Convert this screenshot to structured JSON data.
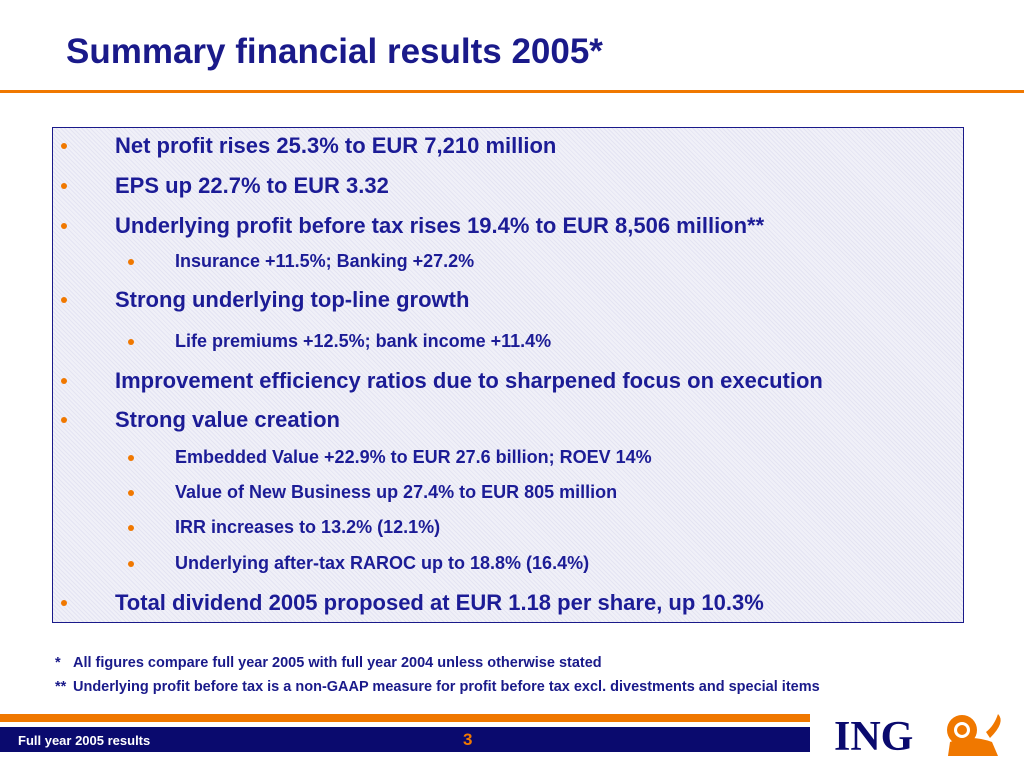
{
  "header": {
    "title": "Summary financial results 2005*"
  },
  "bullets": [
    {
      "level": 1,
      "text": "Net profit rises 25.3% to EUR 7,210 million"
    },
    {
      "level": 1,
      "text": "EPS up 22.7% to EUR 3.32"
    },
    {
      "level": 1,
      "text": "Underlying profit before tax rises 19.4% to EUR 8,506 million**"
    },
    {
      "level": 2,
      "text": "Insurance +11.5%;  Banking +27.2%"
    },
    {
      "level": 1,
      "text": "Strong underlying top-line growth"
    },
    {
      "level": 2,
      "text": "Life premiums +12.5%; bank income +11.4%"
    },
    {
      "level": 1,
      "text": "Improvement efficiency ratios due to sharpened focus on execution"
    },
    {
      "level": 1,
      "text": "Strong value creation"
    },
    {
      "level": 2,
      "text": "Embedded Value +22.9% to EUR 27.6 billion; ROEV 14%"
    },
    {
      "level": 2,
      "text": "Value of New Business up 27.4% to EUR 805 million"
    },
    {
      "level": 2,
      "text": "IRR increases to 13.2% (12.1%)"
    },
    {
      "level": 2,
      "text": "Underlying after-tax RAROC up to 18.8% (16.4%)"
    },
    {
      "level": 1,
      "text": "Total dividend 2005 proposed at EUR 1.18 per share, up 10.3%"
    }
  ],
  "footnotes": [
    {
      "marker": "*",
      "text": "All figures compare full year 2005 with full year 2004 unless otherwise stated"
    },
    {
      "marker": "**",
      "text": "Underlying profit before tax is a non-GAAP measure for profit before tax excl. divestments and special items"
    }
  ],
  "footer": {
    "text": "Full year 2005 results",
    "page_number": "3",
    "logo": "ING"
  }
}
